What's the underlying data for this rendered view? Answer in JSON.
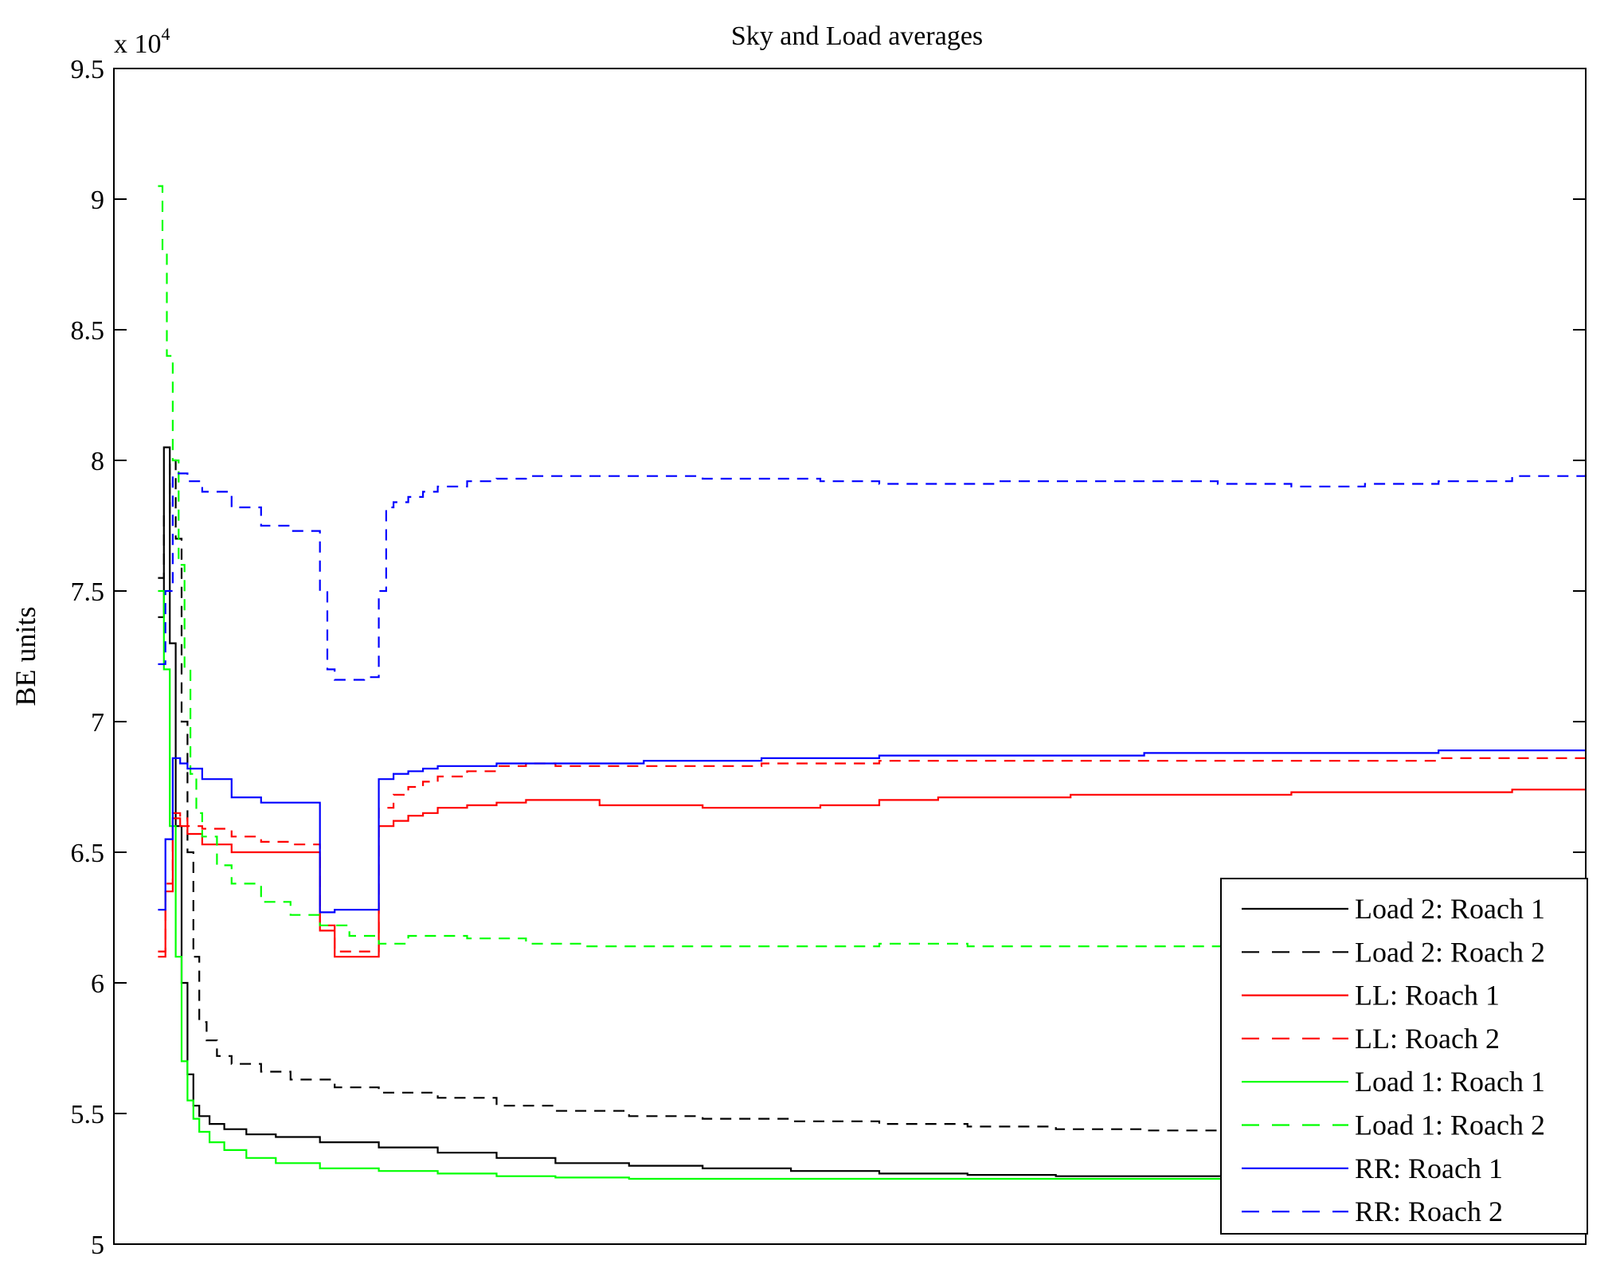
{
  "chart_data": {
    "type": "line",
    "title": "Sky and Load averages",
    "xlabel": "",
    "ylabel": "BE units",
    "y_multiplier_label": "x 10",
    "y_multiplier_exponent": "4",
    "ylim": [
      50000,
      95000
    ],
    "xlim": [
      0,
      100
    ],
    "y_ticks": [
      50000,
      55000,
      60000,
      65000,
      70000,
      75000,
      80000,
      85000,
      90000,
      95000
    ],
    "y_tick_labels": [
      "5",
      "5.5",
      "6",
      "6.5",
      "7",
      "7.5",
      "8",
      "8.5",
      "9",
      "9.5"
    ],
    "grid": false,
    "legend_position": "bottom-right",
    "series": [
      {
        "name": "Load 2: Roach 1",
        "color": "#000000",
        "dash": "solid",
        "x": [
          3,
          3.4,
          3.8,
          4.2,
          4.6,
          5,
          5.4,
          5.8,
          6.5,
          7.5,
          9,
          11,
          14,
          18,
          22,
          26,
          30,
          35,
          40,
          46,
          52,
          58,
          64,
          70,
          76,
          82,
          88,
          94,
          100
        ],
        "y": [
          74000,
          80500,
          73000,
          66000,
          60000,
          56500,
          55300,
          54900,
          54600,
          54400,
          54200,
          54100,
          53900,
          53700,
          53500,
          53300,
          53100,
          53000,
          52900,
          52800,
          52700,
          52650,
          52600,
          52600,
          52500,
          52400,
          52350,
          52300,
          52300
        ]
      },
      {
        "name": "Load 2: Roach 2",
        "color": "#000000",
        "dash": "dashed",
        "x": [
          3,
          3.4,
          3.8,
          4.2,
          4.6,
          5,
          5.4,
          5.8,
          6.3,
          7,
          8,
          10,
          12,
          15,
          18,
          22,
          26,
          30,
          35,
          40,
          46,
          52,
          58,
          64,
          70,
          76,
          82,
          88,
          94,
          100
        ],
        "y": [
          75500,
          78000,
          80000,
          77000,
          70000,
          65000,
          61000,
          58500,
          57800,
          57200,
          56900,
          56600,
          56300,
          56000,
          55800,
          55600,
          55300,
          55100,
          54900,
          54800,
          54700,
          54600,
          54500,
          54400,
          54350,
          54300,
          54250,
          54200,
          54200,
          54200
        ]
      },
      {
        "name": "LL: Roach 1",
        "color": "#ff0000",
        "dash": "solid",
        "x": [
          3,
          3.5,
          4,
          4.5,
          5,
          6,
          8,
          10,
          12,
          13.5,
          14,
          15,
          16,
          17,
          18,
          19,
          20,
          21,
          22,
          24,
          26,
          28,
          30,
          33,
          36,
          40,
          44,
          48,
          52,
          56,
          60,
          65,
          70,
          75,
          80,
          85,
          90,
          95,
          100
        ],
        "y": [
          61000,
          63500,
          66300,
          66000,
          65700,
          65300,
          65000,
          65000,
          65000,
          65000,
          62000,
          61000,
          61000,
          61000,
          66000,
          66200,
          66400,
          66500,
          66700,
          66800,
          66900,
          67000,
          67000,
          66800,
          66800,
          66700,
          66700,
          66800,
          67000,
          67100,
          67100,
          67200,
          67200,
          67200,
          67300,
          67300,
          67300,
          67400,
          67400
        ]
      },
      {
        "name": "LL: Roach 2",
        "color": "#ff0000",
        "dash": "dashed",
        "x": [
          3,
          3.5,
          4,
          4.5,
          5,
          6,
          8,
          10,
          12,
          13.5,
          14,
          15,
          16,
          17,
          18,
          19,
          20,
          21,
          22,
          24,
          26,
          28,
          30,
          33,
          36,
          40,
          44,
          48,
          52,
          56,
          60,
          65,
          70,
          75,
          80,
          85,
          90,
          95,
          100
        ],
        "y": [
          61200,
          63800,
          66500,
          66300,
          66000,
          65900,
          65600,
          65400,
          65300,
          65300,
          62200,
          61200,
          61200,
          61200,
          66700,
          67200,
          67500,
          67700,
          67900,
          68100,
          68300,
          68400,
          68300,
          68300,
          68300,
          68300,
          68400,
          68400,
          68500,
          68500,
          68500,
          68500,
          68500,
          68500,
          68500,
          68500,
          68600,
          68600,
          68600
        ]
      },
      {
        "name": "Load 1: Roach 1",
        "color": "#00ff00",
        "dash": "solid",
        "x": [
          3,
          3.4,
          3.8,
          4.2,
          4.6,
          5,
          5.4,
          5.8,
          6.5,
          7.5,
          9,
          11,
          14,
          18,
          22,
          26,
          30,
          35,
          40,
          46,
          52,
          58,
          64,
          70,
          76,
          82,
          88,
          94,
          100
        ],
        "y": [
          75000,
          72000,
          66000,
          61000,
          57000,
          55500,
          54800,
          54300,
          53900,
          53600,
          53300,
          53100,
          52900,
          52800,
          52700,
          52600,
          52550,
          52500,
          52500,
          52500,
          52500,
          52500,
          52500,
          52500,
          52500,
          52550,
          52550,
          52600,
          52600
        ]
      },
      {
        "name": "Load 1: Roach 2",
        "color": "#00ff00",
        "dash": "dashed",
        "x": [
          3,
          3.3,
          3.6,
          4,
          4.4,
          4.8,
          5.2,
          5.6,
          6,
          7,
          8,
          10,
          12,
          14,
          16,
          18,
          20,
          24,
          28,
          32,
          36,
          40,
          46,
          52,
          58,
          64,
          70,
          76,
          82,
          88,
          94,
          100
        ],
        "y": [
          90500,
          88000,
          84000,
          80000,
          76000,
          72000,
          68000,
          66500,
          65600,
          64500,
          63800,
          63100,
          62600,
          62200,
          61800,
          61500,
          61800,
          61700,
          61500,
          61400,
          61400,
          61400,
          61400,
          61500,
          61400,
          61400,
          61400,
          61300,
          61300,
          61300,
          61200,
          61200
        ]
      },
      {
        "name": "RR: Roach 1",
        "color": "#0000ff",
        "dash": "solid",
        "x": [
          3,
          3.5,
          4,
          4.5,
          5,
          6,
          8,
          10,
          12,
          13.5,
          14,
          15,
          16,
          17,
          18,
          19,
          20,
          21,
          22,
          24,
          26,
          28,
          30,
          33,
          36,
          40,
          44,
          48,
          52,
          56,
          60,
          65,
          70,
          75,
          80,
          85,
          90,
          95,
          100
        ],
        "y": [
          62800,
          65500,
          68600,
          68400,
          68200,
          67800,
          67100,
          66900,
          66900,
          66900,
          62700,
          62800,
          62800,
          62800,
          67800,
          68000,
          68100,
          68200,
          68300,
          68300,
          68400,
          68400,
          68400,
          68400,
          68500,
          68500,
          68600,
          68600,
          68700,
          68700,
          68700,
          68700,
          68800,
          68800,
          68800,
          68800,
          68900,
          68900,
          68900
        ]
      },
      {
        "name": "RR: Roach 2",
        "color": "#0000ff",
        "dash": "dashed",
        "x": [
          3,
          3.5,
          4,
          4.5,
          5,
          6,
          8,
          10,
          12,
          13.5,
          14,
          14.5,
          15,
          17,
          18,
          18.5,
          19,
          20,
          21,
          22,
          24,
          26,
          28,
          30,
          33,
          36,
          40,
          44,
          48,
          52,
          56,
          60,
          65,
          70,
          75,
          80,
          85,
          90,
          95,
          100
        ],
        "y": [
          72200,
          75000,
          79500,
          79500,
          79200,
          78800,
          78200,
          77500,
          77300,
          77300,
          75000,
          72000,
          71600,
          71700,
          75000,
          78200,
          78400,
          78600,
          78800,
          79000,
          79200,
          79300,
          79400,
          79400,
          79400,
          79400,
          79300,
          79300,
          79200,
          79100,
          79100,
          79200,
          79200,
          79200,
          79100,
          79000,
          79100,
          79200,
          79400,
          79600
        ]
      }
    ]
  }
}
